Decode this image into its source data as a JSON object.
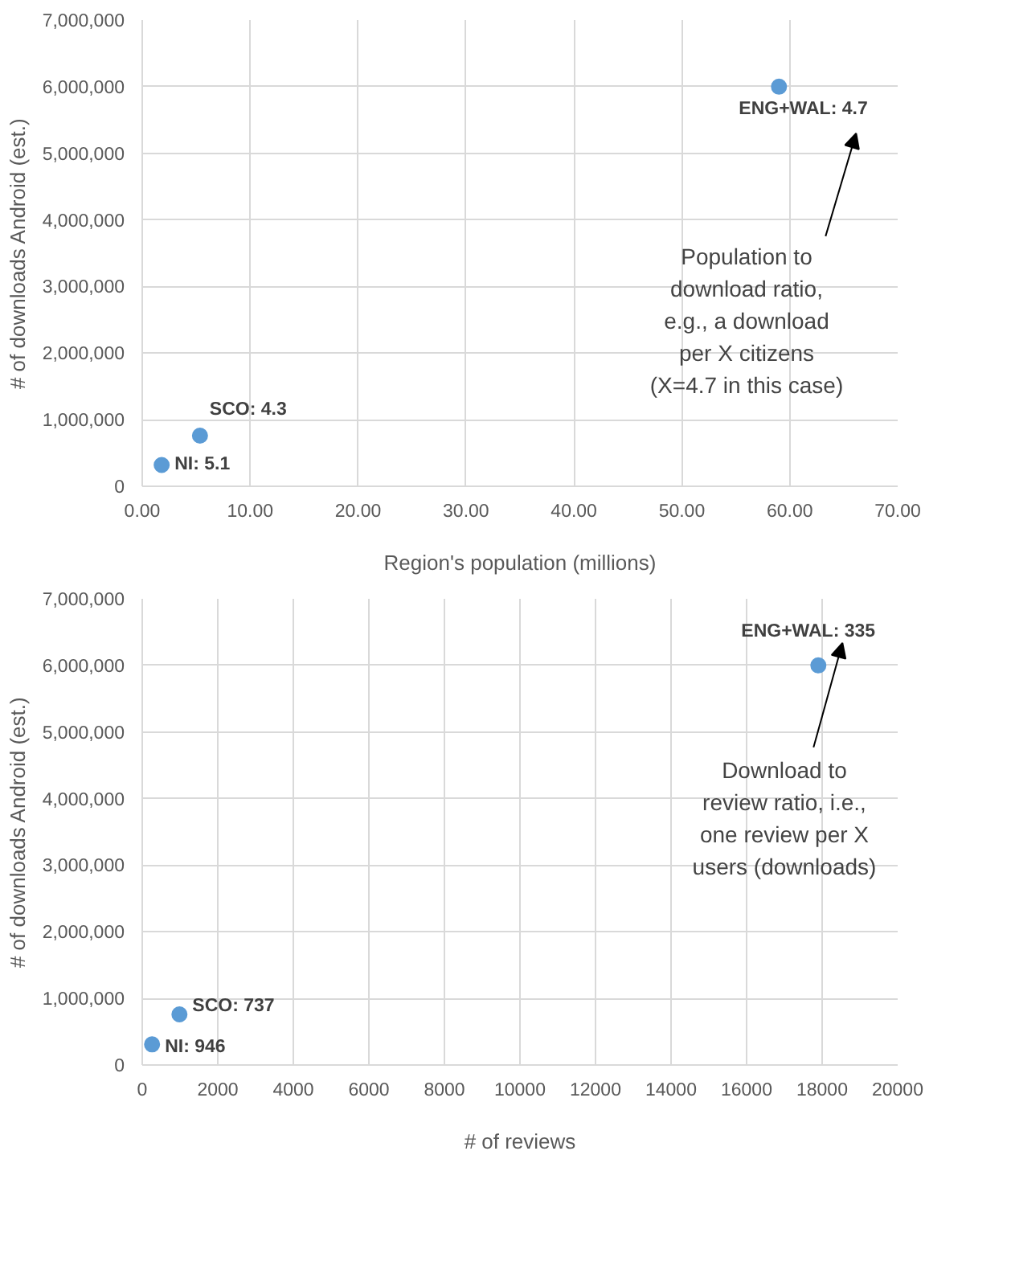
{
  "chart_data": [
    {
      "type": "scatter",
      "xlabel": "Region's population (millions)",
      "ylabel": "# of downloads Android (est.)",
      "x": [
        1.8,
        5.35,
        59
      ],
      "series": [
        {
          "color": "#5b9bd5",
          "values": [
            320000,
            760000,
            6000000
          ]
        }
      ],
      "xlim": [
        0,
        70
      ],
      "ylim": [
        0,
        7000000
      ],
      "xticks": [
        {
          "value": 0,
          "label": "0.00"
        },
        {
          "value": 10,
          "label": "10.00"
        },
        {
          "value": 20,
          "label": "20.00"
        },
        {
          "value": 30,
          "label": "30.00"
        },
        {
          "value": 40,
          "label": "40.00"
        },
        {
          "value": 50,
          "label": "50.00"
        },
        {
          "value": 60,
          "label": "60.00"
        },
        {
          "value": 70,
          "label": "70.00"
        }
      ],
      "yticks": [
        0,
        {
          "value": 1000000,
          "label": "1,000,000"
        },
        {
          "value": 2000000,
          "label": "2,000,000"
        },
        {
          "value": 3000000,
          "label": "3,000,000"
        },
        {
          "value": 4000000,
          "label": "4,000,000"
        },
        {
          "value": 5000000,
          "label": "5,000,000"
        },
        {
          "value": 6000000,
          "label": "6,000,000"
        },
        {
          "value": 7000000,
          "label": "7,000,000"
        }
      ],
      "grid": true,
      "marker": "circle",
      "annotations": [
        {
          "text": "NI: 5.1",
          "x": 1.8,
          "y": 320000
        },
        {
          "text": "SCO: 4.3",
          "x": 5.35,
          "y": 760000
        },
        {
          "text": "ENG+WAL: 4.7",
          "x": 59,
          "y": 6000000
        },
        "Population to\ndownload ratio,\ne.g., a download\nper X citizens\n(X=4.7 in this case)"
      ]
    },
    {
      "type": "scatter",
      "xlabel": "# of reviews",
      "ylabel": "# of downloads Android (est.)",
      "x": [
        260,
        985,
        17900
      ],
      "series": [
        {
          "color": "#5b9bd5",
          "values": [
            310000,
            760000,
            6000000
          ]
        }
      ],
      "xlim": [
        0,
        20000
      ],
      "ylim": [
        0,
        7000000
      ],
      "xticks": [
        0,
        2000,
        4000,
        6000,
        8000,
        10000,
        12000,
        14000,
        16000,
        18000,
        20000
      ],
      "yticks": [
        0,
        {
          "value": 1000000,
          "label": "1,000,000"
        },
        {
          "value": 2000000,
          "label": "2,000,000"
        },
        {
          "value": 3000000,
          "label": "3,000,000"
        },
        {
          "value": 4000000,
          "label": "4,000,000"
        },
        {
          "value": 5000000,
          "label": "5,000,000"
        },
        {
          "value": 6000000,
          "label": "6,000,000"
        },
        {
          "value": 7000000,
          "label": "7,000,000"
        }
      ],
      "grid": true,
      "marker": "circle",
      "annotations": [
        {
          "text": "NI: 946",
          "x": 260,
          "y": 310000
        },
        {
          "text": "SCO: 737",
          "x": 985,
          "y": 760000
        },
        {
          "text": "ENG+WAL: 335",
          "x": 17900,
          "y": 6000000
        },
        "Download to\nreview ratio, i.e.,\none review per X\nusers (downloads)"
      ]
    }
  ]
}
